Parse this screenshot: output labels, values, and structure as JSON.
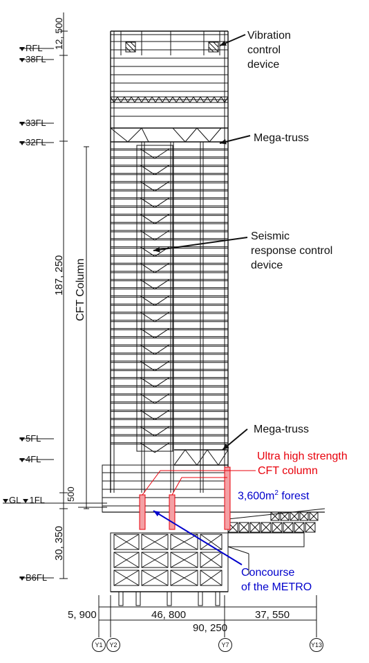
{
  "levels": {
    "rfl": "RFL",
    "f38": "38FL",
    "f33": "33FL",
    "f32": "32FL",
    "f5": "5FL",
    "f4": "4FL",
    "gl": "GL",
    "f1": "1FL",
    "b6": "B6FL"
  },
  "vertical_dims": {
    "top": "12, 500",
    "middle": "187, 250",
    "gl_offset": "500",
    "bottom": "30, 350"
  },
  "cft_column_label": "CFT Column",
  "annotations": {
    "vibration": [
      "Vibration",
      "control",
      "device"
    ],
    "mega_truss_top": "Mega-truss",
    "seismic": [
      "Seismic",
      "response control",
      "device"
    ],
    "mega_truss_bottom": "Mega-truss",
    "ultra": [
      "Ultra high strength",
      "CFT column"
    ],
    "forest_value": "3,600m",
    "forest_sup": "2",
    "forest_word": " forest",
    "concourse": [
      "Concourse",
      "of the METRO"
    ]
  },
  "horizontal_dims": {
    "left": "5, 900",
    "center": "46, 800",
    "right": "37, 550",
    "total": "90, 250"
  },
  "grid_lines": [
    "Y1",
    "Y2",
    "Y7",
    "Y13"
  ],
  "colors": {
    "ink": "#111111",
    "annotation_black": "#111111",
    "highlight_red": "#e8000b",
    "highlight_blue": "#0000cc",
    "red_column_fill": "#f4a0a4"
  }
}
